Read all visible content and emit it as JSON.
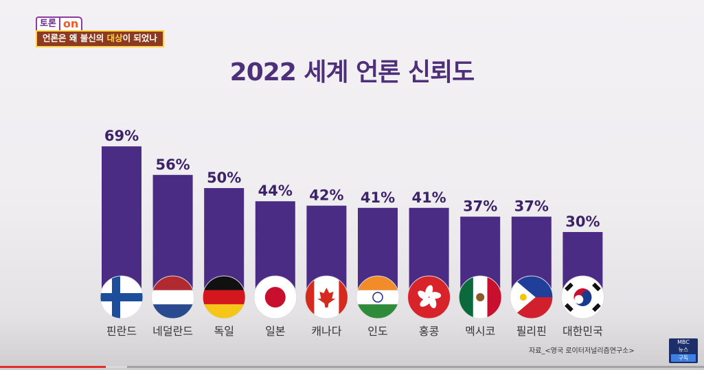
{
  "badge": {
    "toron": "토론",
    "on": "on",
    "subtitle_a": "언론은 왜 불신의 ",
    "subtitle_b": "대상",
    "subtitle_c": "이 되었나"
  },
  "chart_data": {
    "type": "bar",
    "title": "2022 세계 언론 신뢰도",
    "categories": [
      "핀란드",
      "네덜란드",
      "독일",
      "일본",
      "캐나다",
      "인도",
      "홍콩",
      "멕시코",
      "필리핀",
      "대한민국"
    ],
    "values": [
      69,
      56,
      50,
      44,
      42,
      41,
      41,
      37,
      37,
      30
    ],
    "value_labels": [
      "69%",
      "56%",
      "50%",
      "44%",
      "42%",
      "41%",
      "41%",
      "37%",
      "37%",
      "30%"
    ],
    "unit": "%",
    "flags": [
      "finland-flag-icon",
      "netherlands-flag-icon",
      "germany-flag-icon",
      "japan-flag-icon",
      "canada-flag-icon",
      "india-flag-icon",
      "hong-kong-flag-icon",
      "mexico-flag-icon",
      "philippines-flag-icon",
      "south-korea-flag-icon"
    ],
    "bar_color": "#4a2c85",
    "grid": false,
    "legend": "none"
  },
  "source": "자료_<영국 로이터저널리즘연구소>",
  "logo": {
    "line1": "MBC",
    "line2": "뉴스",
    "sub": "구독"
  },
  "video": {
    "progress": 0.15,
    "buffered": 0.18
  }
}
